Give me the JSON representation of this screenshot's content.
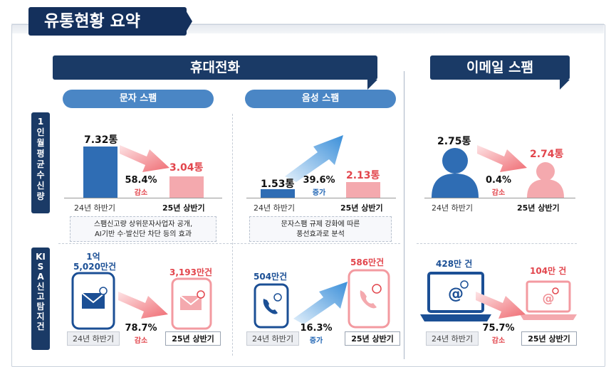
{
  "header": {
    "title": "유통현황 요약"
  },
  "sections": {
    "mobile": {
      "title": "휴대전화"
    },
    "email": {
      "title": "이메일 스팸"
    },
    "sms_pill": "문자 스팸",
    "voice_pill": "음성 스팸"
  },
  "row_labels": {
    "per_person": "1인 월평균 수신량",
    "kisa": "KISA 신고탐지건"
  },
  "periods": {
    "prev": "24년 하반기",
    "curr": "25년 상반기"
  },
  "sms": {
    "avg": {
      "prev": "7.32통",
      "curr": "3.04통",
      "pct": "58.4%",
      "change": "감소",
      "prev_value": 7.32,
      "curr_value": 3.04
    },
    "note_line1": "스팸신고량 상위문자사업자 공개,",
    "note_line2": "AI기반 수·발신단 차단 등의 효과",
    "kisa": {
      "prev_line1": "1억",
      "prev_line2": "5,020만건",
      "curr": "3,193만건",
      "pct": "78.7%",
      "change": "감소"
    }
  },
  "voice": {
    "avg": {
      "prev": "1.53통",
      "curr": "2.13통",
      "pct": "39.6%",
      "change": "증가",
      "prev_value": 1.53,
      "curr_value": 2.13
    },
    "note_line1": "문자스팸 규제 강화에 따른",
    "note_line2": "풍선효과로 분석",
    "kisa": {
      "prev": "504만건",
      "curr": "586만건",
      "pct": "16.3%",
      "change": "증가"
    }
  },
  "email": {
    "avg": {
      "prev": "2.75통",
      "curr": "2.74통",
      "pct": "0.4%",
      "change": "감소"
    },
    "kisa": {
      "prev": "428만 건",
      "curr": "104만 건",
      "pct": "75.7%",
      "change": "감소"
    }
  },
  "colors": {
    "navy": "#1a3a66",
    "blue": "#2f6db4",
    "pink": "#f4a9ae",
    "red": "#e2454c",
    "light_blue": "#4a86c5"
  },
  "icons": [
    "envelope-icon",
    "phone-icon",
    "laptop-icon",
    "person-icon",
    "arrow-icon",
    "block-icon"
  ]
}
